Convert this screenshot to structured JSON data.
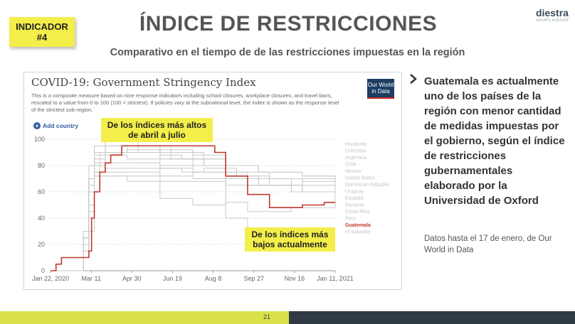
{
  "badge": {
    "line1": "INDICADOR",
    "line2": "#4"
  },
  "title": "ÍNDICE DE RESTRICCIONES",
  "subtitle": "Comparativo en el tiempo de de las restricciones impuestas en la región",
  "logo": {
    "name": "diestra",
    "tag": "GRUPO ASESOR"
  },
  "panel": {
    "owid_line1": "Our World",
    "owid_line2": "in Data",
    "add_country": "Add country"
  },
  "callouts": {
    "high": "De los índices más altos de abril a julio",
    "low": "De los índices más bajos actualmente"
  },
  "right_text": "Guatemala es actualmente uno de los países de la región con menor cantidad de medidas impuestas por el gobierno, según el índice de restricciones gubernamentales elaborado por la Universidad de Oxford",
  "note": "Datos hasta el 17 de enero, de Our World in Data",
  "page_number": "21",
  "colors": {
    "highlight": "#c0392b",
    "badge": "#f3ee4a",
    "footer_green": "#d8e14a",
    "footer_dark": "#2f3a44"
  },
  "chart_data": {
    "type": "line",
    "title": "COVID-19: Government Stringency Index",
    "subtitle": "This is a composite measure based on nine response indicators including school closures, workplace closures, and travel bans, rescaled to a value from 0 to 100 (100 = strictest). If policies vary at the subnational level, the index is shown as the response level of the strictest sub-region.",
    "x_tick_labels": [
      "Jan 22, 2020",
      "Mar 11",
      "Apr 30",
      "Jun 19",
      "Aug 8",
      "Sep 27",
      "Nov 16",
      "Jan 11, 2021"
    ],
    "ylim": [
      0,
      100
    ],
    "y_ticks": [
      0,
      20,
      40,
      60,
      80,
      100
    ],
    "grid": true,
    "legend_placement": "right",
    "highlighted": "Guatemala",
    "series": [
      {
        "name": "Honduras",
        "values": [
          [
            0,
            0
          ],
          [
            6,
            10
          ],
          [
            7,
            30
          ],
          [
            8,
            80
          ],
          [
            10,
            95
          ],
          [
            20,
            95
          ],
          [
            22,
            90
          ],
          [
            28,
            85
          ],
          [
            32,
            75
          ],
          [
            36,
            70
          ],
          [
            44,
            60
          ],
          [
            52,
            58
          ]
        ]
      },
      {
        "name": "Colombia",
        "values": [
          [
            0,
            0
          ],
          [
            6,
            20
          ],
          [
            7,
            50
          ],
          [
            8,
            85
          ],
          [
            10,
            90
          ],
          [
            20,
            88
          ],
          [
            24,
            85
          ],
          [
            28,
            80
          ],
          [
            32,
            70
          ],
          [
            36,
            65
          ],
          [
            44,
            60
          ],
          [
            52,
            62
          ]
        ]
      },
      {
        "name": "Argentina",
        "values": [
          [
            0,
            0
          ],
          [
            6,
            10
          ],
          [
            7,
            45
          ],
          [
            8,
            90
          ],
          [
            10,
            100
          ],
          [
            16,
            90
          ],
          [
            22,
            85
          ],
          [
            28,
            80
          ],
          [
            32,
            75
          ],
          [
            40,
            70
          ],
          [
            46,
            65
          ],
          [
            52,
            60
          ]
        ]
      },
      {
        "name": "Chile",
        "values": [
          [
            0,
            0
          ],
          [
            6,
            20
          ],
          [
            7,
            60
          ],
          [
            8,
            75
          ],
          [
            10,
            78
          ],
          [
            20,
            78
          ],
          [
            24,
            75
          ],
          [
            28,
            78
          ],
          [
            34,
            72
          ],
          [
            40,
            70
          ],
          [
            46,
            68
          ],
          [
            52,
            65
          ]
        ]
      },
      {
        "name": "Mexico",
        "values": [
          [
            0,
            0
          ],
          [
            6,
            20
          ],
          [
            7,
            70
          ],
          [
            8,
            82
          ],
          [
            14,
            82
          ],
          [
            20,
            72
          ],
          [
            26,
            70
          ],
          [
            32,
            70
          ],
          [
            36,
            70
          ],
          [
            44,
            70
          ],
          [
            52,
            72
          ]
        ]
      },
      {
        "name": "United States",
        "values": [
          [
            0,
            0
          ],
          [
            6,
            30
          ],
          [
            7,
            60
          ],
          [
            8,
            72
          ],
          [
            14,
            72
          ],
          [
            20,
            68
          ],
          [
            26,
            68
          ],
          [
            32,
            65
          ],
          [
            36,
            65
          ],
          [
            44,
            70
          ],
          [
            52,
            70
          ]
        ]
      },
      {
        "name": "Dominican Republic",
        "values": [
          [
            0,
            0
          ],
          [
            6,
            15
          ],
          [
            7,
            60
          ],
          [
            8,
            88
          ],
          [
            14,
            85
          ],
          [
            20,
            80
          ],
          [
            26,
            75
          ],
          [
            32,
            70
          ],
          [
            40,
            65
          ],
          [
            46,
            60
          ],
          [
            52,
            55
          ]
        ]
      },
      {
        "name": "Uruguay",
        "values": [
          [
            0,
            0
          ],
          [
            6,
            10
          ],
          [
            7,
            70
          ],
          [
            8,
            72
          ],
          [
            14,
            68
          ],
          [
            20,
            55
          ],
          [
            26,
            50
          ],
          [
            32,
            52
          ],
          [
            36,
            45
          ],
          [
            44,
            48
          ],
          [
            52,
            65
          ]
        ]
      },
      {
        "name": "Ecuador",
        "values": [
          [
            0,
            0
          ],
          [
            6,
            25
          ],
          [
            7,
            70
          ],
          [
            8,
            90
          ],
          [
            14,
            90
          ],
          [
            20,
            85
          ],
          [
            26,
            80
          ],
          [
            32,
            72
          ],
          [
            38,
            65
          ],
          [
            46,
            60
          ],
          [
            52,
            55
          ]
        ]
      },
      {
        "name": "Panama",
        "values": [
          [
            0,
            0
          ],
          [
            6,
            25
          ],
          [
            7,
            65
          ],
          [
            8,
            90
          ],
          [
            14,
            95
          ],
          [
            20,
            92
          ],
          [
            26,
            88
          ],
          [
            32,
            80
          ],
          [
            38,
            75
          ],
          [
            46,
            72
          ],
          [
            52,
            68
          ]
        ]
      },
      {
        "name": "Costa Rica",
        "values": [
          [
            0,
            0
          ],
          [
            6,
            25
          ],
          [
            7,
            60
          ],
          [
            8,
            75
          ],
          [
            14,
            75
          ],
          [
            20,
            78
          ],
          [
            26,
            75
          ],
          [
            32,
            70
          ],
          [
            38,
            65
          ],
          [
            46,
            60
          ],
          [
            52,
            55
          ]
        ]
      },
      {
        "name": "Peru",
        "values": [
          [
            0,
            0
          ],
          [
            6,
            20
          ],
          [
            7,
            80
          ],
          [
            8,
            95
          ],
          [
            14,
            95
          ],
          [
            20,
            90
          ],
          [
            26,
            85
          ],
          [
            32,
            80
          ],
          [
            38,
            75
          ],
          [
            46,
            72
          ],
          [
            52,
            70
          ]
        ]
      },
      {
        "name": "Guatemala",
        "values": [
          [
            0,
            0
          ],
          [
            1,
            5
          ],
          [
            2,
            10
          ],
          [
            6,
            10
          ],
          [
            7,
            15
          ],
          [
            7.5,
            40
          ],
          [
            8,
            60
          ],
          [
            9,
            75
          ],
          [
            10,
            82
          ],
          [
            11,
            88
          ],
          [
            13,
            95
          ],
          [
            20,
            95
          ],
          [
            26,
            95
          ],
          [
            30,
            90
          ],
          [
            32,
            72
          ],
          [
            36,
            58
          ],
          [
            40,
            48
          ],
          [
            44,
            48
          ],
          [
            46,
            50
          ],
          [
            50,
            52
          ],
          [
            52,
            52
          ]
        ]
      },
      {
        "name": "El Salvador",
        "values": [
          [
            0,
            0
          ],
          [
            6,
            15
          ],
          [
            7,
            40
          ],
          [
            8,
            60
          ],
          [
            9,
            90
          ],
          [
            14,
            92
          ],
          [
            20,
            85
          ],
          [
            26,
            70
          ],
          [
            32,
            40
          ],
          [
            36,
            30
          ],
          [
            44,
            20
          ],
          [
            52,
            20
          ]
        ]
      }
    ]
  }
}
